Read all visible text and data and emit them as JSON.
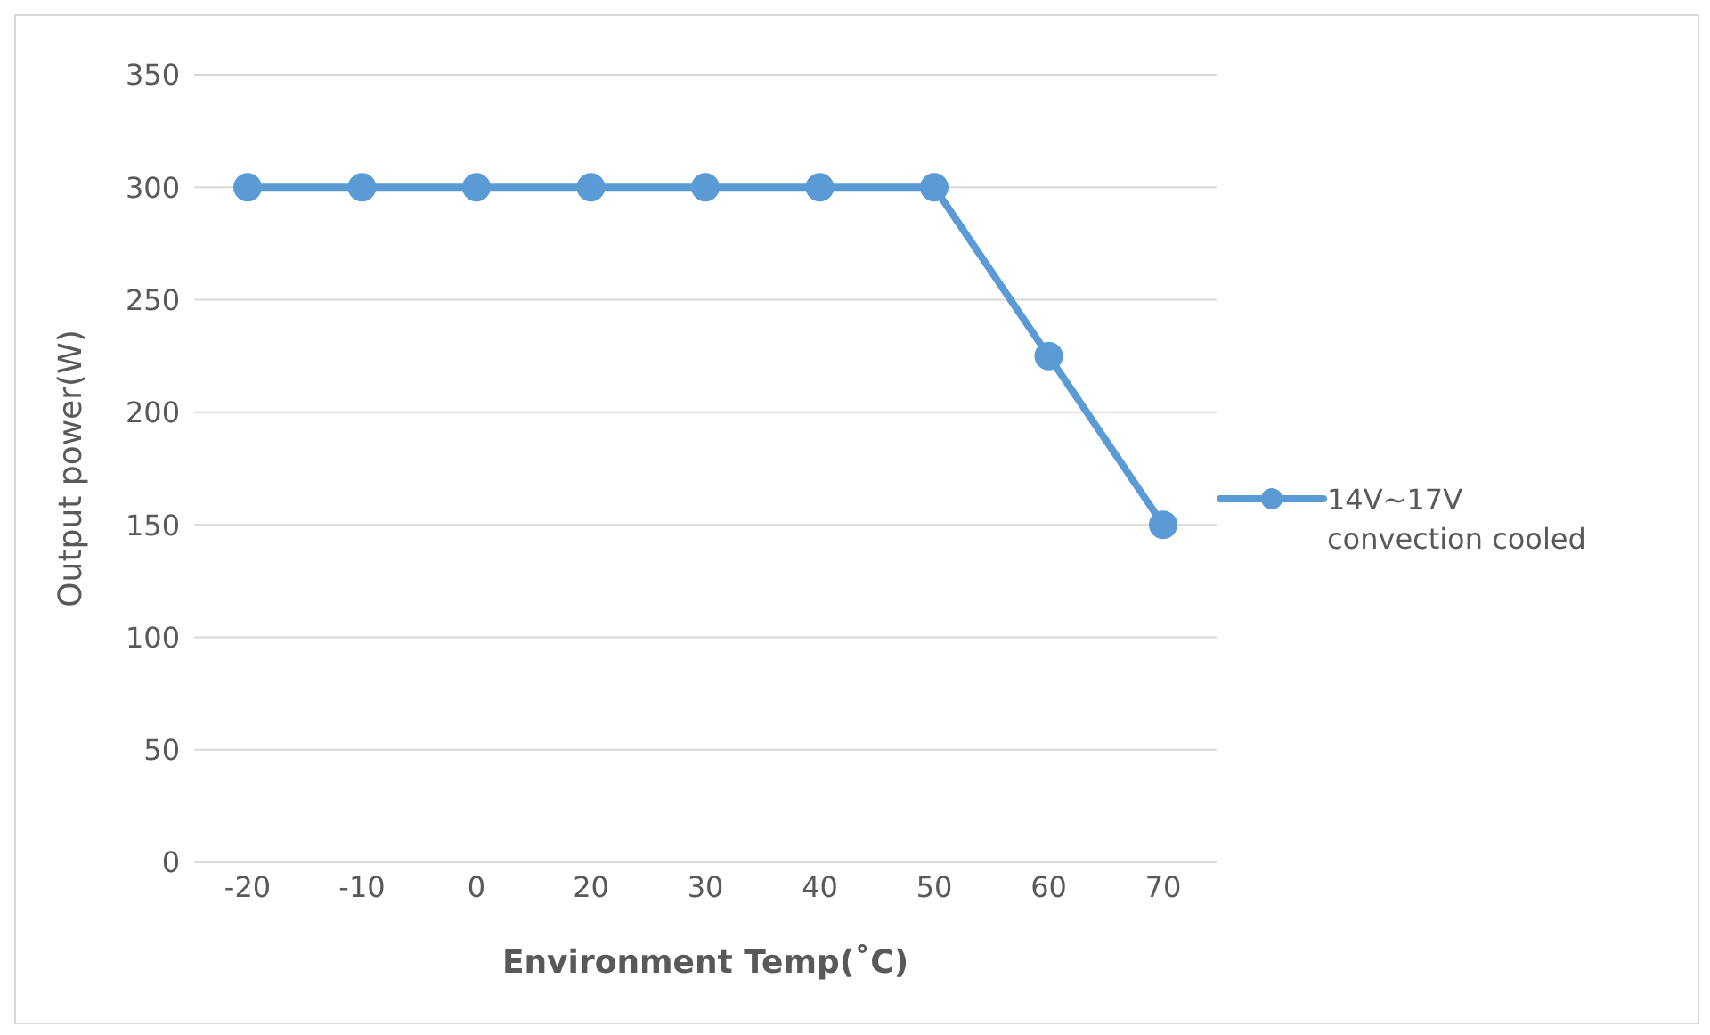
{
  "chart_data": {
    "type": "line",
    "xlabel": "Environment Temp(˚C)",
    "ylabel": "Output power(W)",
    "categories": [
      "-20",
      "-10",
      "0",
      "20",
      "30",
      "40",
      "50",
      "60",
      "70"
    ],
    "series": [
      {
        "name": "14V~17V convection cooled",
        "color": "#5b9bd5",
        "values": [
          300,
          300,
          300,
          300,
          300,
          300,
          300,
          225,
          150
        ]
      }
    ],
    "ylim": [
      0,
      350
    ],
    "yticks": [
      0,
      50,
      100,
      150,
      200,
      250,
      300,
      350
    ],
    "grid": "y",
    "legend": "right",
    "marker": "circle",
    "line_style": "solid"
  }
}
